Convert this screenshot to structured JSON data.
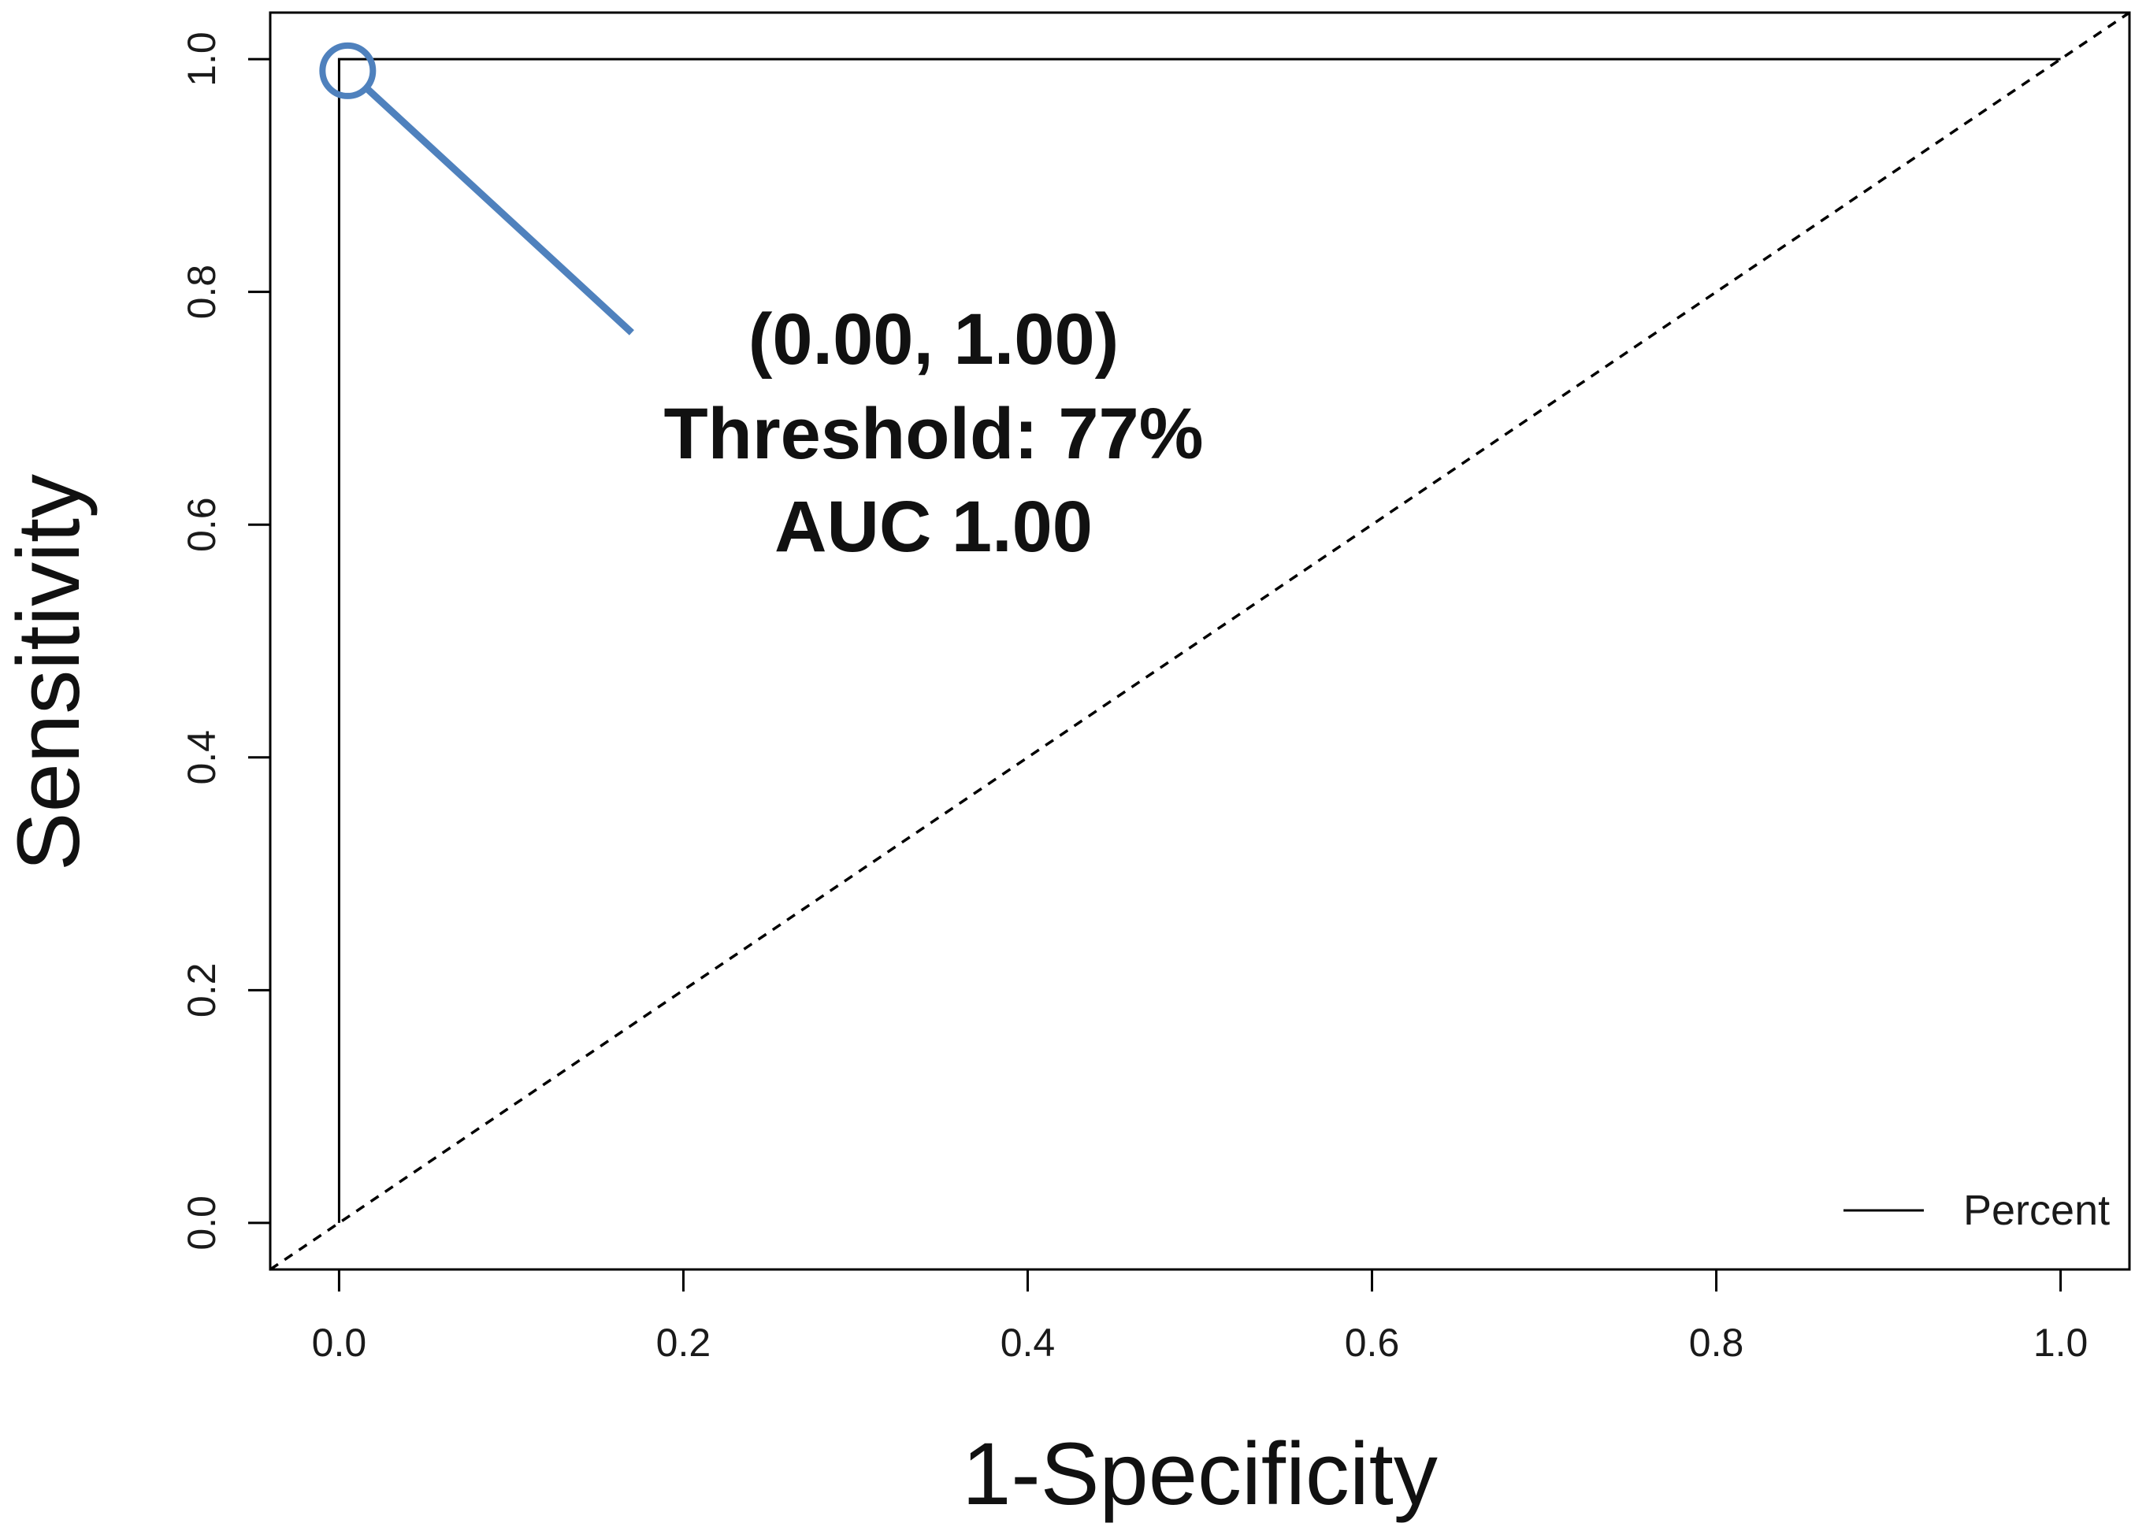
{
  "chart_data": {
    "type": "line",
    "xlabel": "1-Specificity",
    "ylabel": "Sensitivity",
    "xlim": [
      -0.04,
      1.04
    ],
    "ylim": [
      -0.04,
      1.04
    ],
    "x_ticks": [
      {
        "value": 0.0,
        "label": "0.0"
      },
      {
        "value": 0.2,
        "label": "0.2"
      },
      {
        "value": 0.4,
        "label": "0.4"
      },
      {
        "value": 0.6,
        "label": "0.6"
      },
      {
        "value": 0.8,
        "label": "0.8"
      },
      {
        "value": 1.0,
        "label": "1.0"
      }
    ],
    "y_ticks": [
      {
        "value": 0.0,
        "label": "0.0"
      },
      {
        "value": 0.2,
        "label": "0.2"
      },
      {
        "value": 0.4,
        "label": "0.4"
      },
      {
        "value": 0.6,
        "label": "0.6"
      },
      {
        "value": 0.8,
        "label": "0.8"
      },
      {
        "value": 1.0,
        "label": "1.0"
      }
    ],
    "grid": false,
    "legend": {
      "position": "bottom-right",
      "entries": [
        {
          "label": "Percent",
          "color": "#000000"
        }
      ]
    },
    "series": [
      {
        "name": "Percent",
        "color": "#000000",
        "x": [
          0.0,
          0.0,
          1.0
        ],
        "y": [
          0.0,
          1.0,
          1.0
        ]
      }
    ],
    "reference_line": {
      "x": [
        -0.04,
        1.04
      ],
      "y": [
        -0.04,
        1.04
      ],
      "style": "dashed",
      "color": "#000000"
    },
    "highlight_point": {
      "x": 0.005,
      "y": 0.99,
      "color": "#4f81bd"
    },
    "annotation": {
      "lines": [
        "(0.00, 1.00)",
        "Threshold: 77%",
        "AUC 1.00"
      ],
      "pointer_end": {
        "x": 0.17,
        "y": 0.765
      },
      "color": "#4f81bd"
    }
  }
}
